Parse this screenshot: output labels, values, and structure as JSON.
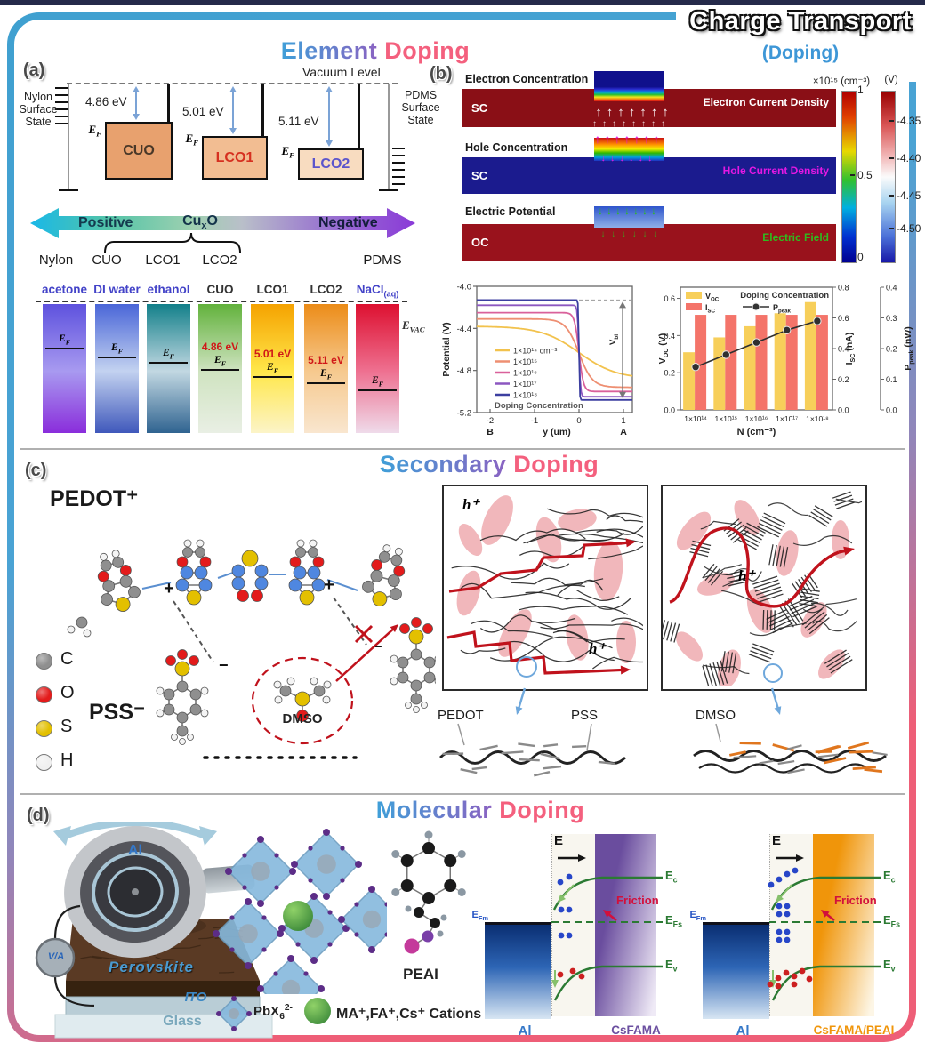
{
  "frame": {
    "badge_title": "Charge Transport",
    "badge_subtitle": "(Doping)"
  },
  "titles": {
    "element": {
      "p1": "Element",
      "p2": " Doping"
    },
    "secondary": {
      "p1": "Secondary",
      "p2": " Doping"
    },
    "molecular": {
      "p1": "Molecular",
      "p2": " Doping"
    }
  },
  "panel_a": {
    "label": "(a)",
    "vacuum": "Vacuum Level",
    "nylon_state": "Nylon\nSurface\nState",
    "pdms_state": "PDMS\nSurface\nState",
    "ef": "E<sub>F</sub>",
    "levels": [
      {
        "name": "CUO",
        "ev": "4.86 eV",
        "fill": "#e8a16e",
        "text": "#4a3828"
      },
      {
        "name": "LCO1",
        "ev": "5.01 eV",
        "fill": "#f2bd92",
        "text": "#d63020"
      },
      {
        "name": "LCO2",
        "ev": "5.11 eV",
        "fill": "#f8dcc0",
        "text": "#5b55cc"
      }
    ],
    "arrow": {
      "left": "Positive",
      "center": "Cu<sub>x</sub>O",
      "right": "Negative"
    },
    "bottom_row": [
      "Nylon",
      "CUO",
      "LCO1",
      "LCO2",
      "PDMS"
    ],
    "evac": "E<sub>VAC</sub>",
    "bars": [
      {
        "label": "acetone",
        "lc": "#4343c8",
        "g": [
          "#5e52de",
          "#a89af0",
          "#8a2ddb"
        ],
        "ef": 34
      },
      {
        "label": "DI water",
        "lc": "#4343c8",
        "g": [
          "#4a66d8",
          "#c3d2f0",
          "#3f58bb"
        ],
        "ef": 41
      },
      {
        "label": "ethanol",
        "lc": "#4343c8",
        "g": [
          "#13808a",
          "#c2d8e2",
          "#2f6390"
        ],
        "ef": 45
      },
      {
        "label": "CUO",
        "lc": "#333333",
        "g": [
          "#62b23c",
          "#cfe3c0",
          "#e9efe4"
        ],
        "ef": 50,
        "ev": "4.86 eV"
      },
      {
        "label": "LCO1",
        "lc": "#333333",
        "g": [
          "#f5a200",
          "#ffe74a",
          "#fcf4c8"
        ],
        "ef": 56,
        "ev": "5.01 eV"
      },
      {
        "label": "LCO2",
        "lc": "#333333",
        "g": [
          "#ec8c18",
          "#f6c98e",
          "#f9e6cf"
        ],
        "ef": 61,
        "ev": "5.11 eV"
      },
      {
        "label": "NaCl<sub>(aq)</sub>",
        "lc": "#4343c8",
        "g": [
          "#dd1030",
          "#ee7090",
          "#efdbea"
        ],
        "ef": 66
      }
    ]
  },
  "panel_b": {
    "label": "(b)",
    "strips": [
      {
        "title": "Electron Concentration",
        "region": "SC",
        "annotation": "Electron Current Density",
        "bg": "#8a0f16",
        "ann_color": "#ffffff",
        "arrow_color": "#ffffff"
      },
      {
        "title": "Hole Concentration",
        "region": "SC",
        "annotation": "Hole Current Density",
        "bg": "#1b1b8e",
        "ann_color": "#e318e3",
        "arrow_color": "#e318e3"
      },
      {
        "title": "Electric Potential",
        "region": "OC",
        "annotation": "Electric Field",
        "bg": "#99121c",
        "ann_color": "#2fbb1e",
        "arrow_color": "#2fbb1e"
      }
    ],
    "colorbar1": {
      "title": "×10¹⁵ (cm⁻³)",
      "ticks": [
        "1",
        "0.5",
        "0"
      ]
    },
    "colorbar2": {
      "title": "(V)",
      "ticks": [
        "-4.35",
        "-4.40",
        "-4.45",
        "-4.50"
      ]
    },
    "chart1": {
      "type": "line",
      "ylabel": "Potential (V)",
      "xlabel": "y (um)",
      "corner_left": "B",
      "corner_right": "A",
      "x_ticks": [
        -2,
        -1,
        0,
        1
      ],
      "y_ticks": [
        -4.0,
        -4.4,
        -4.8,
        -5.2
      ],
      "xlim": [
        -2.3,
        1.2
      ],
      "ylim": [
        -5.2,
        -4.0
      ],
      "legend_title": "Doping Concentration",
      "vbi": {
        "base": "V",
        "sub": "bi"
      },
      "series": [
        {
          "label": "1×10¹⁴ cm⁻³",
          "color": "#f2c24d",
          "v_left": -4.38,
          "v_right": -4.88,
          "w": 0.85
        },
        {
          "label": "1×10¹⁵",
          "color": "#ee8f72",
          "v_left": -4.31,
          "v_right": -4.96,
          "w": 0.3
        },
        {
          "label": "1×10¹⁶",
          "color": "#d9619b",
          "v_left": -4.25,
          "v_right": -5.0,
          "w": 0.1
        },
        {
          "label": "1×10¹⁷",
          "color": "#8c57c0",
          "v_left": -4.18,
          "v_right": -5.05,
          "w": 0.035
        },
        {
          "label": "1×10¹⁸",
          "color": "#3c3fa0",
          "v_left": -4.13,
          "v_right": -5.08,
          "w": 0.015
        }
      ]
    },
    "chart2": {
      "type": "bar+line",
      "title": "Doping Concentration",
      "xlabel": "N (cm⁻³)",
      "categories": [
        "1×10¹⁴",
        "1×10¹⁵",
        "1×10¹⁶",
        "1×10¹⁷",
        "1×10¹⁸"
      ],
      "axes": {
        "left": {
          "base": "V",
          "sub": "OC",
          "unit": " (V)",
          "ticks": [
            "0.0",
            "0.2",
            "0.4",
            "0.6"
          ],
          "vals": [
            0,
            0.2,
            0.4,
            0.6
          ],
          "max": 0.66
        },
        "right1": {
          "base": "I",
          "sub": "SC",
          "unit": " (nA)",
          "ticks": [
            "0.0",
            "0.2",
            "0.4",
            "0.6",
            "0.8"
          ],
          "vals": [
            0,
            0.2,
            0.4,
            0.6,
            0.8
          ],
          "max": 0.8
        },
        "right2": {
          "base": "P",
          "sub": "peak",
          "unit": " (nW)",
          "ticks": [
            "0.0",
            "0.1",
            "0.2",
            "0.3",
            "0.4"
          ],
          "vals": [
            0,
            0.1,
            0.2,
            0.3,
            0.4
          ],
          "max": 0.4
        }
      },
      "series": [
        {
          "name": {
            "base": "V",
            "sub": "OC"
          },
          "type": "bar",
          "axis": "left",
          "color": "#f7cf5a",
          "values": [
            0.31,
            0.39,
            0.45,
            0.52,
            0.58
          ]
        },
        {
          "name": {
            "base": "I",
            "sub": "SC"
          },
          "type": "bar",
          "axis": "right1",
          "color": "#f4746a",
          "values": [
            0.62,
            0.62,
            0.62,
            0.62,
            0.62
          ]
        },
        {
          "name": {
            "base": "P",
            "sub": "peak"
          },
          "type": "line",
          "axis": "right2",
          "color": "#333333",
          "values": [
            0.14,
            0.18,
            0.22,
            0.26,
            0.29
          ]
        }
      ]
    }
  },
  "panel_c": {
    "label": "(c)",
    "pedot": "PEDOT⁺",
    "pss": "PSS⁻",
    "dmso": "DMSO",
    "atoms": [
      {
        "symbol": "C",
        "color": "#8f8f8f"
      },
      {
        "symbol": "O",
        "color": "#e31b1b"
      },
      {
        "symbol": "S",
        "color": "#e3c000"
      },
      {
        "symbol": "H",
        "color": "#f0f0f0"
      }
    ],
    "hplus": "h⁺",
    "bottom_labels": [
      "PEDOT",
      "PSS",
      "DMSO"
    ]
  },
  "panel_d": {
    "label": "(d)",
    "device": {
      "disc": "Al",
      "meter": "V/A",
      "perovskite": "Perovskite",
      "ito": "ITO",
      "glass": "Glass"
    },
    "legend": {
      "pbx": "PbX<sub>6</sub><sup>2-</sup>",
      "cations": "MA⁺,FA⁺,Cs⁺ Cations"
    },
    "peai": "PEAI",
    "bands": [
      {
        "metal": "Al",
        "sc": "CsFAMA",
        "sc_color": "#6b4fa0",
        "g1": "#6a4d9e",
        "g2": "#efeaf6",
        "efield": "E",
        "friction": "Friction",
        "efm": "E<sub>Fm</sub>",
        "efs": "E<sub>Fs</sub>",
        "ec": "E<sub>c</sub>",
        "ev": "E<sub>v</sub>",
        "density": "sparse"
      },
      {
        "metal": "Al",
        "sc": "CsFAMA/PEAI",
        "sc_color": "#f0950a",
        "g1": "#f0950a",
        "g2": "#fdf6e6",
        "efield": "E",
        "friction": "Friction",
        "efm": "E<sub>Fm</sub>",
        "efs": "E<sub>Fs</sub>",
        "ec": "E<sub>c</sub>",
        "ev": "E<sub>v</sub>",
        "density": "dense"
      }
    ]
  }
}
